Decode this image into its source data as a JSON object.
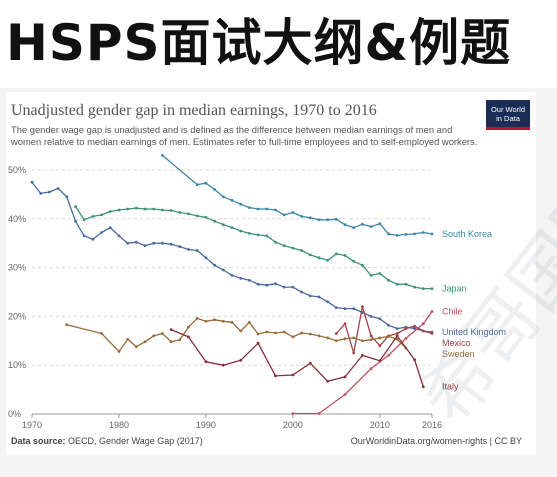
{
  "banner": {
    "title": "HSPS面试大纲&例题"
  },
  "watermark": {
    "text": "希哥国际"
  },
  "logo": {
    "line1": "Our World",
    "line2": "in Data"
  },
  "source": {
    "label": "Data source:",
    "text": "OECD, Gender Wage Gap (2017)",
    "credit": "OurWorldinData.org/women-rights | CC BY"
  },
  "chart_data": {
    "type": "line",
    "title": "Unadjusted gender gap in median earnings, 1970 to 2016",
    "subtitle": "The gender wage gap is unadjusted and is defined as the difference between median earnings of men and women relative to median earnings of men. Estimates refer to full-time employees and to self-employed workers.",
    "xlabel": "",
    "ylabel": "",
    "xlim": [
      1970,
      2016
    ],
    "ylim": [
      0,
      50
    ],
    "x_ticks": [
      1970,
      1980,
      1990,
      2000,
      2010,
      2016
    ],
    "y_ticks": [
      0,
      10,
      20,
      30,
      40,
      50
    ],
    "y_tick_labels": [
      "0%",
      "10%",
      "20%",
      "30%",
      "40%",
      "50%"
    ],
    "grid": "horizontal-dashed",
    "series": [
      {
        "name": "South Korea",
        "color": "#3b87a8",
        "points": [
          [
            1985,
            53.0
          ],
          [
            1989,
            47.0
          ],
          [
            1990,
            47.3
          ],
          [
            1991,
            46.0
          ],
          [
            1992,
            44.5
          ],
          [
            1993,
            43.8
          ],
          [
            1994,
            43.0
          ],
          [
            1995,
            42.3
          ],
          [
            1996,
            42.0
          ],
          [
            1997,
            42.0
          ],
          [
            1998,
            41.8
          ],
          [
            1999,
            40.8
          ],
          [
            2000,
            41.3
          ],
          [
            2001,
            40.5
          ],
          [
            2002,
            40.2
          ],
          [
            2003,
            39.8
          ],
          [
            2004,
            39.8
          ],
          [
            2005,
            39.9
          ],
          [
            2006,
            38.8
          ],
          [
            2007,
            38.2
          ],
          [
            2008,
            38.9
          ],
          [
            2009,
            38.4
          ],
          [
            2010,
            39.0
          ],
          [
            2011,
            36.9
          ],
          [
            2012,
            36.6
          ],
          [
            2013,
            36.8
          ],
          [
            2014,
            36.9
          ],
          [
            2015,
            37.2
          ],
          [
            2016,
            36.9
          ]
        ]
      },
      {
        "name": "Japan",
        "color": "#3c9278",
        "points": [
          [
            1975,
            42.5
          ],
          [
            1976,
            39.8
          ],
          [
            1977,
            40.5
          ],
          [
            1978,
            40.8
          ],
          [
            1979,
            41.5
          ],
          [
            1980,
            41.8
          ],
          [
            1981,
            42.0
          ],
          [
            1982,
            42.2
          ],
          [
            1983,
            42.0
          ],
          [
            1984,
            42.0
          ],
          [
            1985,
            41.8
          ],
          [
            1986,
            41.7
          ],
          [
            1987,
            41.3
          ],
          [
            1988,
            41.0
          ],
          [
            1989,
            40.6
          ],
          [
            1990,
            40.3
          ],
          [
            1991,
            39.5
          ],
          [
            1992,
            38.8
          ],
          [
            1993,
            38.2
          ],
          [
            1994,
            37.5
          ],
          [
            1995,
            37.0
          ],
          [
            1996,
            36.7
          ],
          [
            1997,
            36.5
          ],
          [
            1998,
            35.2
          ],
          [
            1999,
            34.5
          ],
          [
            2000,
            34.0
          ],
          [
            2001,
            33.5
          ],
          [
            2002,
            32.6
          ],
          [
            2003,
            32.0
          ],
          [
            2004,
            31.5
          ],
          [
            2005,
            32.8
          ],
          [
            2006,
            32.5
          ],
          [
            2007,
            31.3
          ],
          [
            2008,
            30.5
          ],
          [
            2009,
            28.4
          ],
          [
            2010,
            28.8
          ],
          [
            2011,
            27.4
          ],
          [
            2012,
            26.6
          ],
          [
            2013,
            26.6
          ],
          [
            2014,
            26.0
          ],
          [
            2015,
            25.7
          ],
          [
            2016,
            25.7
          ]
        ]
      },
      {
        "name": "United Kingdom",
        "color": "#4c6a9c",
        "points": [
          [
            1970,
            47.5
          ],
          [
            1971,
            45.2
          ],
          [
            1972,
            45.5
          ],
          [
            1973,
            46.2
          ],
          [
            1974,
            44.5
          ],
          [
            1975,
            39.5
          ],
          [
            1976,
            36.5
          ],
          [
            1977,
            35.8
          ],
          [
            1978,
            37.2
          ],
          [
            1979,
            38.2
          ],
          [
            1980,
            36.5
          ],
          [
            1981,
            35.0
          ],
          [
            1982,
            35.2
          ],
          [
            1983,
            34.5
          ],
          [
            1984,
            35.0
          ],
          [
            1985,
            35.0
          ],
          [
            1986,
            34.8
          ],
          [
            1987,
            34.3
          ],
          [
            1988,
            33.7
          ],
          [
            1989,
            33.5
          ],
          [
            1990,
            32.0
          ],
          [
            1991,
            30.5
          ],
          [
            1992,
            29.5
          ],
          [
            1993,
            28.4
          ],
          [
            1994,
            27.8
          ],
          [
            1995,
            27.4
          ],
          [
            1996,
            26.6
          ],
          [
            1997,
            26.4
          ],
          [
            1998,
            26.7
          ],
          [
            1999,
            26.0
          ],
          [
            2000,
            26.0
          ],
          [
            2001,
            25.0
          ],
          [
            2002,
            24.2
          ],
          [
            2003,
            24.0
          ],
          [
            2004,
            23.0
          ],
          [
            2005,
            21.8
          ],
          [
            2006,
            21.6
          ],
          [
            2007,
            21.6
          ],
          [
            2008,
            20.8
          ],
          [
            2009,
            20.0
          ],
          [
            2010,
            19.5
          ],
          [
            2011,
            18.2
          ],
          [
            2012,
            17.5
          ],
          [
            2013,
            17.8
          ],
          [
            2014,
            17.5
          ],
          [
            2015,
            17.0
          ],
          [
            2016,
            16.8
          ]
        ]
      },
      {
        "name": "Chile",
        "color": "#c15065",
        "points": [
          [
            2000,
            0.1
          ],
          [
            2003,
            0.1
          ],
          [
            2006,
            4.0
          ],
          [
            2009,
            9.3
          ],
          [
            2011,
            12.0
          ],
          [
            2013,
            15.5
          ],
          [
            2015,
            18.5
          ],
          [
            2016,
            21.0
          ]
        ]
      },
      {
        "name": "Mexico",
        "color": "#a2434a",
        "points": [
          [
            2005,
            16.5
          ],
          [
            2006,
            18.5
          ],
          [
            2007,
            12.5
          ],
          [
            2008,
            22.0
          ],
          [
            2009,
            16.0
          ],
          [
            2010,
            14.0
          ],
          [
            2011,
            16.0
          ],
          [
            2012,
            16.5
          ],
          [
            2013,
            17.5
          ],
          [
            2014,
            18.0
          ],
          [
            2015,
            17.0
          ],
          [
            2016,
            16.5
          ]
        ]
      },
      {
        "name": "Sweden",
        "color": "#996d39",
        "points": [
          [
            1974,
            18.3
          ],
          [
            1978,
            16.5
          ],
          [
            1980,
            12.8
          ],
          [
            1981,
            15.3
          ],
          [
            1982,
            13.8
          ],
          [
            1983,
            14.8
          ],
          [
            1984,
            16.0
          ],
          [
            1985,
            16.5
          ],
          [
            1986,
            14.8
          ],
          [
            1987,
            15.2
          ],
          [
            1988,
            17.8
          ],
          [
            1989,
            19.6
          ],
          [
            1990,
            19.0
          ],
          [
            1991,
            19.3
          ],
          [
            1992,
            19.0
          ],
          [
            1993,
            18.8
          ],
          [
            1994,
            17.0
          ],
          [
            1995,
            18.8
          ],
          [
            1996,
            16.4
          ],
          [
            1997,
            16.8
          ],
          [
            1998,
            16.6
          ],
          [
            1999,
            16.8
          ],
          [
            2000,
            15.8
          ],
          [
            2001,
            16.6
          ],
          [
            2002,
            16.4
          ],
          [
            2003,
            16.0
          ],
          [
            2004,
            15.6
          ],
          [
            2005,
            15.0
          ],
          [
            2006,
            15.4
          ],
          [
            2007,
            15.6
          ],
          [
            2008,
            15.0
          ],
          [
            2009,
            15.2
          ],
          [
            2010,
            15.6
          ],
          [
            2011,
            15.9
          ],
          [
            2012,
            15.3
          ],
          [
            2013,
            13.5
          ]
        ]
      },
      {
        "name": "Italy",
        "color": "#883039",
        "points": [
          [
            1986,
            17.3
          ],
          [
            1988,
            15.8
          ],
          [
            1990,
            10.7
          ],
          [
            1992,
            10.0
          ],
          [
            1994,
            11.0
          ],
          [
            1996,
            14.5
          ],
          [
            1998,
            7.8
          ],
          [
            2000,
            8.0
          ],
          [
            2002,
            10.4
          ],
          [
            2004,
            6.7
          ],
          [
            2006,
            7.6
          ],
          [
            2008,
            12.0
          ],
          [
            2010,
            10.9
          ],
          [
            2012,
            16.0
          ],
          [
            2014,
            11.1
          ],
          [
            2015,
            5.6
          ]
        ]
      }
    ]
  }
}
